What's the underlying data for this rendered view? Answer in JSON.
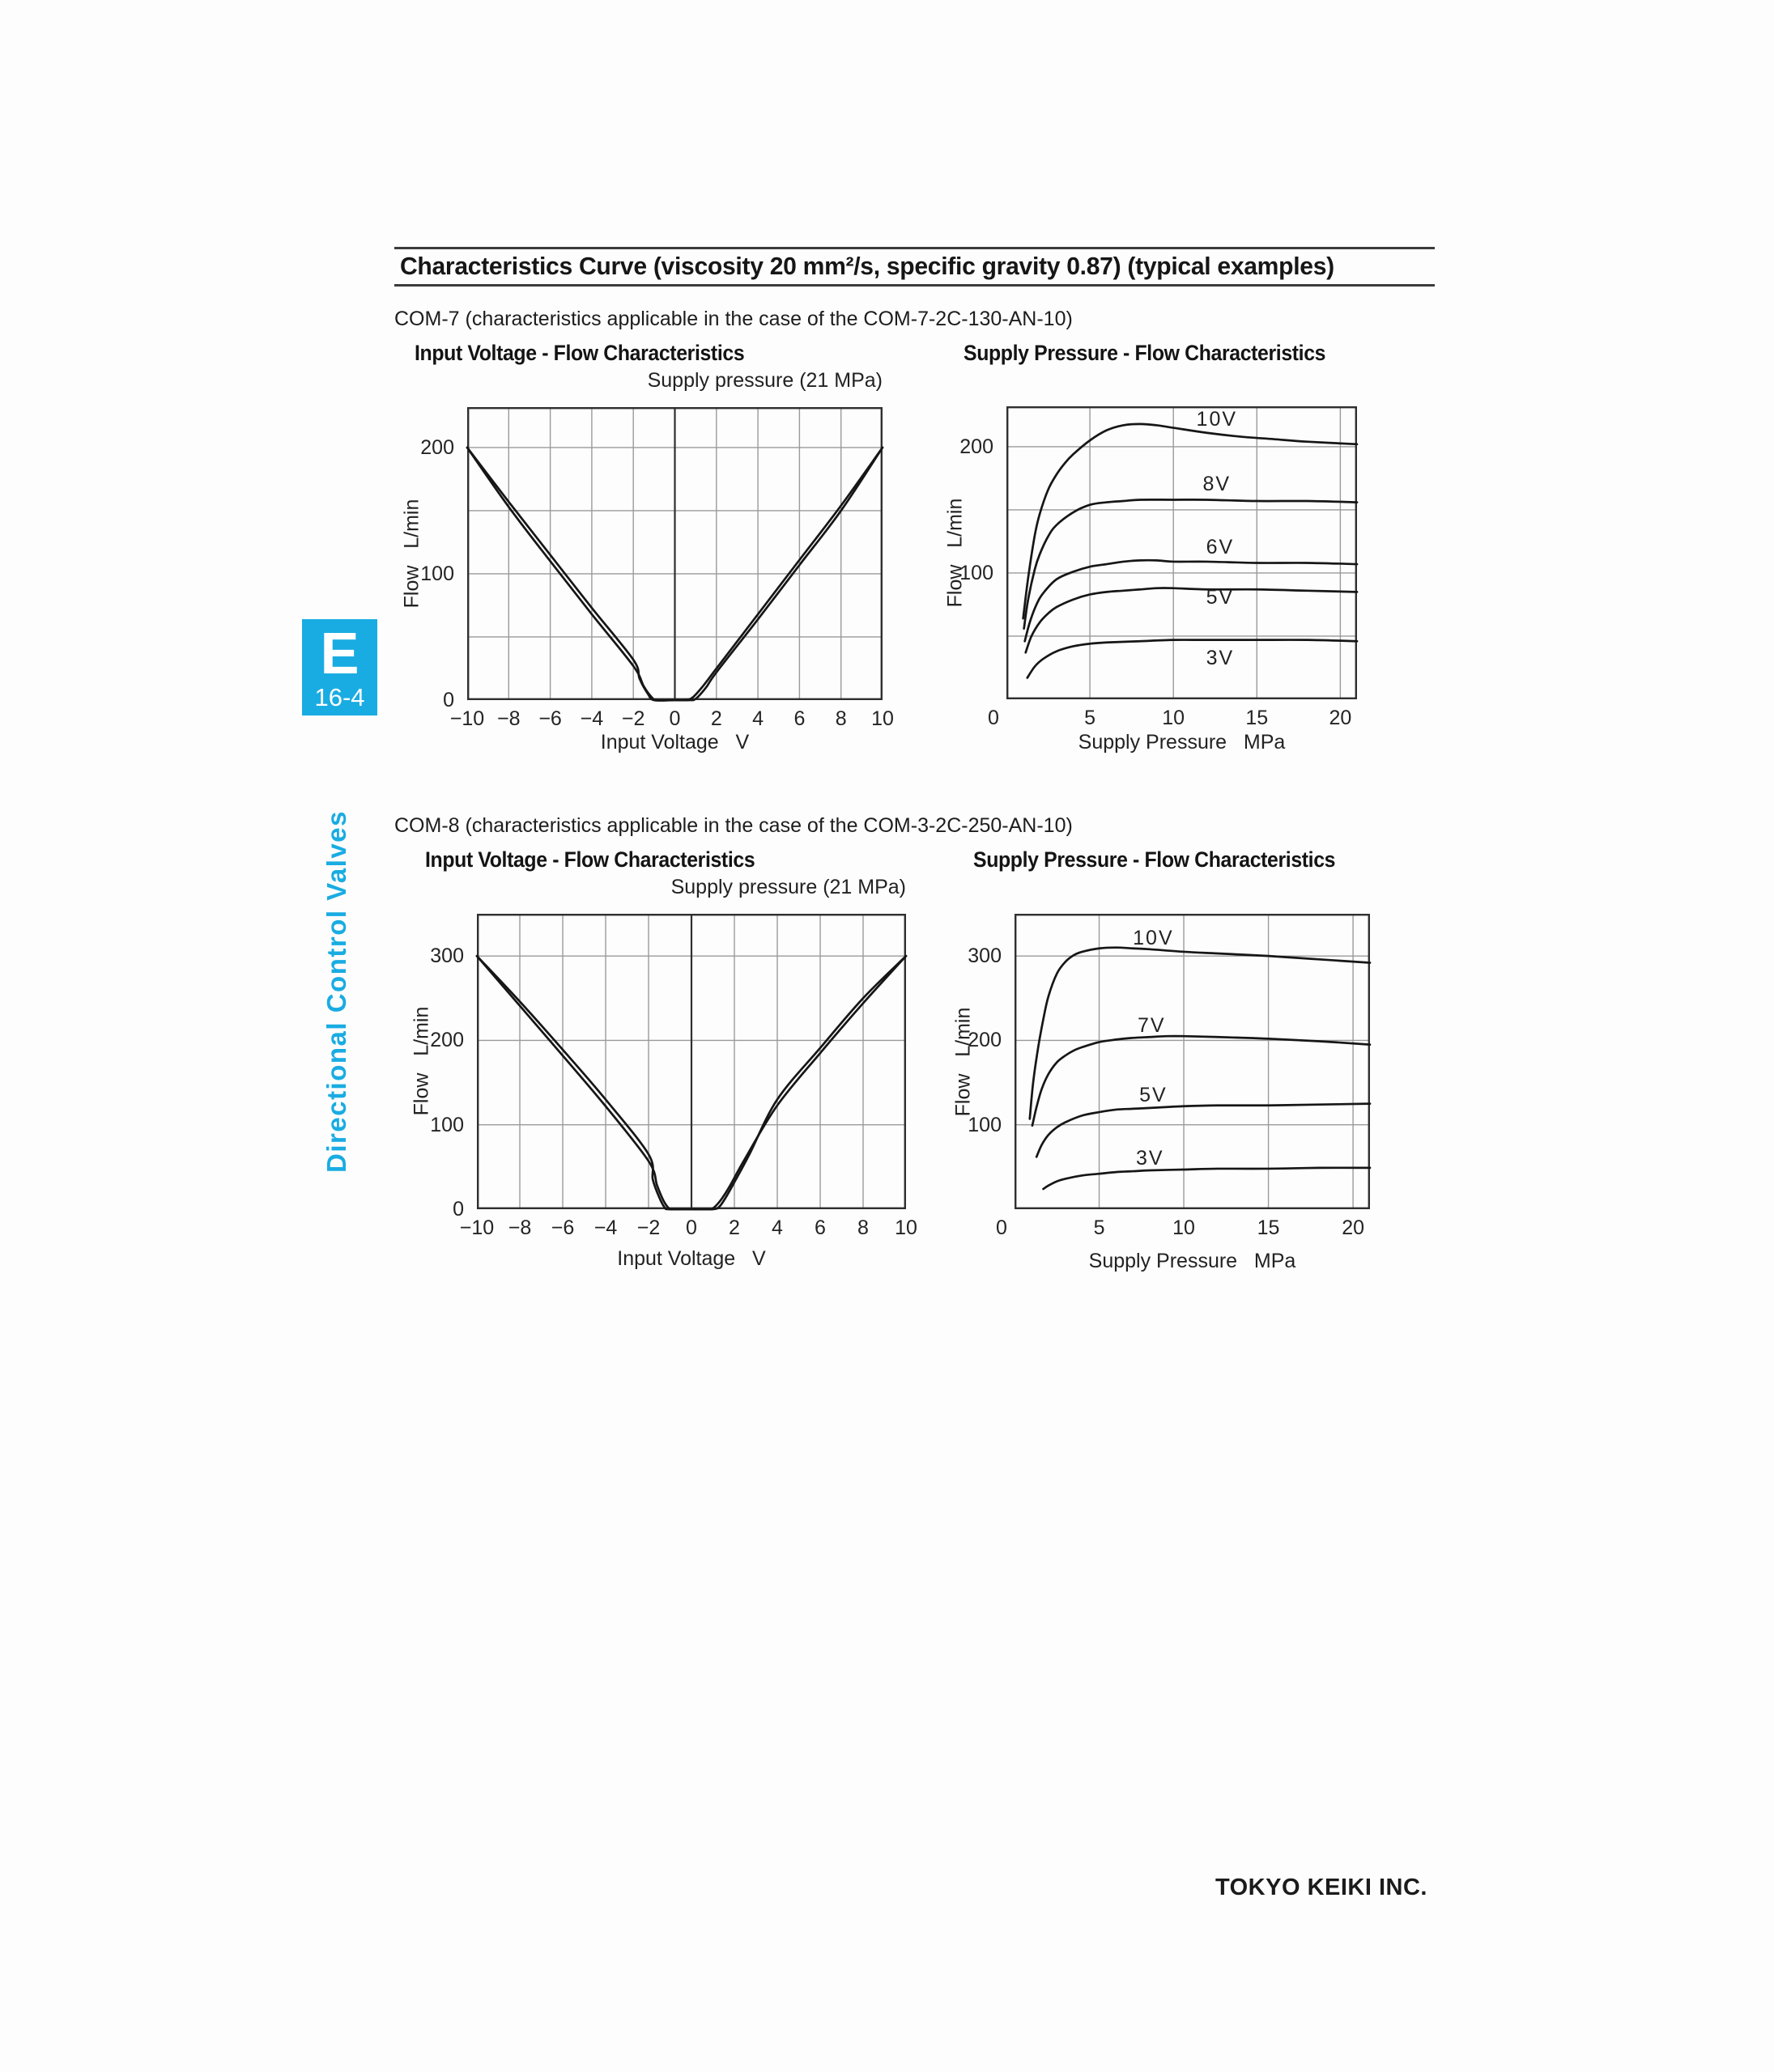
{
  "header": {
    "title": "Characteristics Curve (viscosity 20 mm²/s, specific gravity 0.87) (typical examples)"
  },
  "sidebar": {
    "tab_letter": "E",
    "tab_code": "16-4",
    "side_label": "Directional Control Valves",
    "accent_color": "#19ace2"
  },
  "sections": [
    {
      "note": "COM-7 (characteristics applicable in the case of the COM-7-2C-130-AN-10)"
    },
    {
      "note": "COM-8 (characteristics applicable in the case of the COM-3-2C-250-AN-10)"
    }
  ],
  "footer": {
    "company": "TOKYO KEIKI INC."
  },
  "colors": {
    "grid": "#9a9a9a",
    "frame": "#2f2f2f",
    "curve": "#161616",
    "accent": "#19ace2"
  },
  "chart_data": [
    {
      "id": "com7-voltage-flow",
      "type": "line",
      "section": "COM-7",
      "title": "Input Voltage - Flow Characteristics",
      "subtitle": "Supply pressure (21 MPa)",
      "xlabel": "Input Voltage   V",
      "ylabel": "Flow   L/min",
      "xlim": [
        -10,
        10
      ],
      "ylim": [
        0,
        232
      ],
      "xticks": [
        -10,
        -8,
        -6,
        -4,
        -2,
        0,
        2,
        4,
        6,
        8,
        10
      ],
      "yticks": [
        0,
        100,
        200
      ],
      "xgrid": [
        -8,
        -6,
        -4,
        -2,
        2,
        4,
        6,
        8
      ],
      "ygrid": [
        50,
        100,
        150,
        200
      ],
      "x_axis_line": 0,
      "grid": true,
      "legend": false,
      "series": [
        {
          "name": "hysteresis-down",
          "points": [
            [
              -10,
              200
            ],
            [
              -8,
              153
            ],
            [
              -6,
              110
            ],
            [
              -4,
              68
            ],
            [
              -2,
              27
            ],
            [
              -1.5,
              11
            ],
            [
              -1.1,
              2
            ],
            [
              -0.85,
              0
            ],
            [
              0,
              0
            ],
            [
              0.5,
              0
            ],
            [
              0.85,
              2
            ],
            [
              1.3,
              10
            ],
            [
              2,
              25
            ],
            [
              4,
              68
            ],
            [
              6,
              111
            ],
            [
              8,
              154
            ],
            [
              10,
              200
            ]
          ]
        },
        {
          "name": "hysteresis-up",
          "points": [
            [
              -10,
              200
            ],
            [
              -8,
              157
            ],
            [
              -6,
              115
            ],
            [
              -4,
              73
            ],
            [
              -2,
              32
            ],
            [
              -1.7,
              17
            ],
            [
              -1.3,
              5
            ],
            [
              -1.0,
              0
            ],
            [
              0,
              0
            ],
            [
              0.7,
              0
            ],
            [
              1.0,
              1
            ],
            [
              1.5,
              10
            ],
            [
              2,
              22
            ],
            [
              4,
              64
            ],
            [
              6,
              107
            ],
            [
              8,
              150
            ],
            [
              10,
              200
            ]
          ]
        }
      ]
    },
    {
      "id": "com7-pressure-flow",
      "type": "line",
      "section": "COM-7",
      "title": "Supply Pressure - Flow Characteristics",
      "xlabel": "Supply Pressure   MPa",
      "ylabel": "Flow   L/min",
      "xlim": [
        0,
        21
      ],
      "ylim": [
        0,
        232
      ],
      "xticks": [
        0,
        5,
        10,
        15,
        20
      ],
      "yticks": [
        100,
        200
      ],
      "xgrid": [
        5,
        10,
        15,
        20
      ],
      "ygrid": [
        50,
        100,
        150,
        200
      ],
      "grid": true,
      "legend": false,
      "series": [
        {
          "name": "10V",
          "label": "10V",
          "label_at": [
            12.6,
            221
          ],
          "points": [
            [
              1,
              64
            ],
            [
              1.3,
              96
            ],
            [
              1.7,
              130
            ],
            [
              2,
              147
            ],
            [
              2.5,
              166
            ],
            [
              3,
              178
            ],
            [
              3.5,
              187
            ],
            [
              4,
              194
            ],
            [
              5,
              205
            ],
            [
              6,
              213
            ],
            [
              7,
              217
            ],
            [
              8,
              218
            ],
            [
              9,
              217
            ],
            [
              10,
              215
            ],
            [
              12,
              211
            ],
            [
              14,
              208
            ],
            [
              16,
              206
            ],
            [
              18,
              204
            ],
            [
              21,
              202
            ]
          ]
        },
        {
          "name": "8V",
          "label": "8V",
          "label_at": [
            12.6,
            170
          ],
          "points": [
            [
              1.05,
              56
            ],
            [
              1.3,
              79
            ],
            [
              1.7,
              103
            ],
            [
              2,
              115
            ],
            [
              2.5,
              129
            ],
            [
              3,
              138
            ],
            [
              4,
              148
            ],
            [
              5,
              154
            ],
            [
              6,
              156
            ],
            [
              7,
              157
            ],
            [
              8,
              158
            ],
            [
              10,
              158
            ],
            [
              12,
              158
            ],
            [
              15,
              157
            ],
            [
              18,
              157
            ],
            [
              21,
              156
            ]
          ]
        },
        {
          "name": "6V",
          "label": "6V",
          "label_at": [
            12.8,
            120
          ],
          "points": [
            [
              1.1,
              46
            ],
            [
              1.4,
              61
            ],
            [
              1.8,
              75
            ],
            [
              2.2,
              84
            ],
            [
              3,
              95
            ],
            [
              4,
              101
            ],
            [
              5,
              105
            ],
            [
              6,
              107
            ],
            [
              7,
              109
            ],
            [
              8,
              110
            ],
            [
              9,
              110
            ],
            [
              10,
              109
            ],
            [
              12,
              109
            ],
            [
              15,
              108
            ],
            [
              18,
              108
            ],
            [
              21,
              107
            ]
          ]
        },
        {
          "name": "5V",
          "label": "5V",
          "label_at": [
            12.8,
            80
          ],
          "points": [
            [
              1.15,
              37
            ],
            [
              1.5,
              50
            ],
            [
              2,
              61
            ],
            [
              2.5,
              68
            ],
            [
              3,
              73
            ],
            [
              4,
              79
            ],
            [
              5,
              83
            ],
            [
              6,
              85
            ],
            [
              7,
              86
            ],
            [
              8,
              87
            ],
            [
              9,
              88
            ],
            [
              10,
              88
            ],
            [
              12,
              87
            ],
            [
              15,
              87
            ],
            [
              18,
              86
            ],
            [
              21,
              85
            ]
          ]
        },
        {
          "name": "3V",
          "label": "3V",
          "label_at": [
            12.8,
            32
          ],
          "points": [
            [
              1.25,
              17
            ],
            [
              1.7,
              26
            ],
            [
              2.2,
              32
            ],
            [
              3,
              38
            ],
            [
              4,
              42
            ],
            [
              5,
              44
            ],
            [
              6,
              45
            ],
            [
              8,
              46
            ],
            [
              10,
              47
            ],
            [
              12,
              47
            ],
            [
              15,
              47
            ],
            [
              18,
              47
            ],
            [
              21,
              46
            ]
          ]
        }
      ]
    },
    {
      "id": "com8-voltage-flow",
      "type": "line",
      "section": "COM-8",
      "title": "Input Voltage - Flow Characteristics",
      "subtitle": "Supply pressure (21 MPa)",
      "xlabel": "Input Voltage   V",
      "ylabel": "Flow   L/min",
      "xlim": [
        -10,
        10
      ],
      "ylim": [
        0,
        350
      ],
      "xticks": [
        -10,
        -8,
        -6,
        -4,
        -2,
        0,
        2,
        4,
        6,
        8,
        10
      ],
      "yticks": [
        0,
        100,
        200,
        300
      ],
      "xgrid": [
        -8,
        -6,
        -4,
        -2,
        2,
        4,
        6,
        8
      ],
      "ygrid": [
        100,
        200,
        300
      ],
      "x_axis_line": 0,
      "grid": true,
      "legend": false,
      "series": [
        {
          "name": "hysteresis-down",
          "points": [
            [
              -10,
              300
            ],
            [
              -8,
              241
            ],
            [
              -6,
              182
            ],
            [
              -4,
              122
            ],
            [
              -2,
              57
            ],
            [
              -1.6,
              28
            ],
            [
              -1.3,
              10
            ],
            [
              -1.05,
              1
            ],
            [
              -0.9,
              0
            ],
            [
              0,
              0
            ],
            [
              0.8,
              0
            ],
            [
              1.05,
              2
            ],
            [
              1.4,
              12
            ],
            [
              1.8,
              28
            ],
            [
              2.5,
              60
            ],
            [
              4,
              123
            ],
            [
              6,
              185
            ],
            [
              8,
              244
            ],
            [
              10,
              300
            ]
          ]
        },
        {
          "name": "hysteresis-up",
          "points": [
            [
              -10,
              300
            ],
            [
              -8,
              246
            ],
            [
              -6,
              189
            ],
            [
              -4,
              130
            ],
            [
              -2,
              65
            ],
            [
              -1.8,
              35
            ],
            [
              -1.5,
              14
            ],
            [
              -1.25,
              2
            ],
            [
              -1.05,
              0
            ],
            [
              0,
              0
            ],
            [
              1.0,
              0
            ],
            [
              1.3,
              3
            ],
            [
              1.6,
              14
            ],
            [
              2.0,
              32
            ],
            [
              2.7,
              65
            ],
            [
              4,
              130
            ],
            [
              6,
              191
            ],
            [
              8,
              250
            ],
            [
              10,
              300
            ]
          ]
        }
      ]
    },
    {
      "id": "com8-pressure-flow",
      "type": "line",
      "section": "COM-8",
      "title": "Supply Pressure - Flow Characteristics",
      "xlabel": "Supply Pressure   MPa",
      "ylabel": "Flow   L/min",
      "xlim": [
        0,
        21
      ],
      "ylim": [
        0,
        350
      ],
      "xticks": [
        0,
        5,
        10,
        15,
        20
      ],
      "yticks": [
        100,
        200,
        300
      ],
      "xgrid": [
        5,
        10,
        15,
        20
      ],
      "ygrid": [
        100,
        200,
        300
      ],
      "grid": true,
      "legend": false,
      "series": [
        {
          "name": "10V",
          "label": "10V",
          "label_at": [
            8.2,
            320
          ],
          "points": [
            [
              0.9,
              107
            ],
            [
              1.1,
              150
            ],
            [
              1.4,
              192
            ],
            [
              1.7,
              225
            ],
            [
              2,
              252
            ],
            [
              2.5,
              279
            ],
            [
              3,
              293
            ],
            [
              3.5,
              301
            ],
            [
              4,
              305
            ],
            [
              5,
              309
            ],
            [
              6,
              310
            ],
            [
              7,
              309
            ],
            [
              8,
              308
            ],
            [
              10,
              305
            ],
            [
              12,
              303
            ],
            [
              15,
              300
            ],
            [
              18,
              296
            ],
            [
              21,
              292
            ]
          ]
        },
        {
          "name": "7V",
          "label": "7V",
          "label_at": [
            8.1,
            217
          ],
          "points": [
            [
              1.05,
              99
            ],
            [
              1.3,
              121
            ],
            [
              1.6,
              142
            ],
            [
              2,
              160
            ],
            [
              2.5,
              174
            ],
            [
              3,
              182
            ],
            [
              3.5,
              188
            ],
            [
              4,
              192
            ],
            [
              5,
              198
            ],
            [
              6,
              201
            ],
            [
              7,
              203
            ],
            [
              8,
              204
            ],
            [
              9,
              205
            ],
            [
              10,
              205
            ],
            [
              12,
              204
            ],
            [
              15,
              202
            ],
            [
              18,
              199
            ],
            [
              21,
              195
            ]
          ]
        },
        {
          "name": "5V",
          "label": "5V",
          "label_at": [
            8.2,
            134
          ],
          "points": [
            [
              1.3,
              62
            ],
            [
              1.6,
              76
            ],
            [
              2,
              88
            ],
            [
              2.5,
              97
            ],
            [
              3,
              103
            ],
            [
              4,
              111
            ],
            [
              5,
              115
            ],
            [
              6,
              118
            ],
            [
              7,
              119
            ],
            [
              8,
              120
            ],
            [
              10,
              122
            ],
            [
              12,
              123
            ],
            [
              15,
              123
            ],
            [
              18,
              124
            ],
            [
              21,
              125
            ]
          ]
        },
        {
          "name": "3V",
          "label": "3V",
          "label_at": [
            8.0,
            59
          ],
          "points": [
            [
              1.7,
              24
            ],
            [
              2,
              28
            ],
            [
              2.5,
              33
            ],
            [
              3,
              36
            ],
            [
              4,
              40
            ],
            [
              5,
              42
            ],
            [
              6,
              44
            ],
            [
              7,
              45
            ],
            [
              8,
              46
            ],
            [
              10,
              47
            ],
            [
              12,
              48
            ],
            [
              15,
              48
            ],
            [
              18,
              49
            ],
            [
              21,
              49
            ]
          ]
        }
      ]
    }
  ]
}
